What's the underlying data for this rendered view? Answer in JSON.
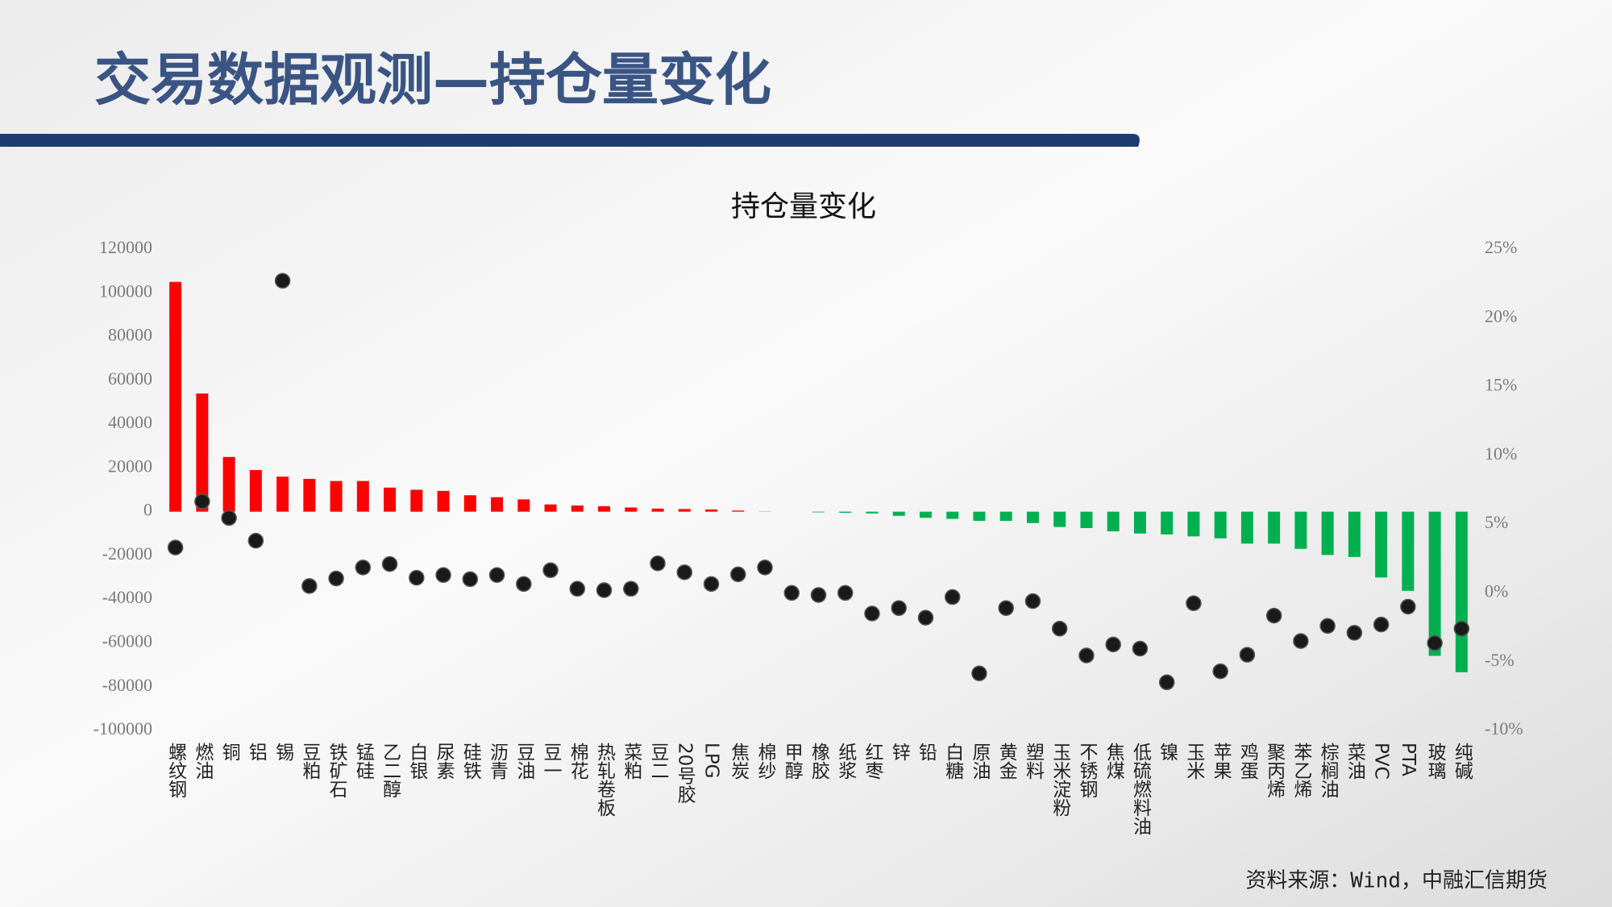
{
  "slide_title": "交易数据观测—持仓量变化",
  "source": "资料来源：Wind，中融汇信期货",
  "chart_data": {
    "type": "combo",
    "title": "持仓量变化",
    "categories": [
      "螺纹钢",
      "燃油",
      "铜",
      "铝",
      "锡",
      "豆粕",
      "铁矿石",
      "锰硅",
      "乙二醇",
      "白银",
      "尿素",
      "硅铁",
      "沥青",
      "豆油",
      "豆一",
      "棉花",
      "热轧卷板",
      "菜粕",
      "豆二",
      "20号胶",
      "LPG",
      "焦炭",
      "棉纱",
      "甲醇",
      "橡胶",
      "纸浆",
      "红枣",
      "锌",
      "铅",
      "白糖",
      "原油",
      "黄金",
      "塑料",
      "玉米淀粉",
      "不锈钢",
      "焦煤",
      "低硫燃料油",
      "镍",
      "玉米",
      "苹果",
      "鸡蛋",
      "聚丙烯",
      "苯乙烯",
      "棕榈油",
      "菜油",
      "PVC",
      "PTA",
      "玻璃",
      "纯碱"
    ],
    "series": [
      {
        "type": "bar",
        "color": "#ff0000",
        "negative_color": "#00b050",
        "values": [
          105000,
          54000,
          25000,
          19000,
          16000,
          15000,
          14000,
          14000,
          11000,
          10000,
          9500,
          7500,
          6600,
          5600,
          3300,
          2800,
          2500,
          1900,
          1400,
          1200,
          1000,
          500,
          100,
          0,
          -300,
          -500,
          -800,
          -1900,
          -2800,
          -3300,
          -4200,
          -4200,
          -5200,
          -7000,
          -7500,
          -9000,
          -10000,
          -10400,
          -11300,
          -12200,
          -14600,
          -14600,
          -17000,
          -19800,
          -20700,
          -30100,
          -36200,
          -65900,
          -73400
        ]
      },
      {
        "type": "scatter",
        "axis": "y2",
        "color": "#1a1a1a",
        "values": [
          3.3,
          6.65,
          5.45,
          3.8,
          22.7,
          0.5,
          1.05,
          1.85,
          2.1,
          1.1,
          1.3,
          1.0,
          1.3,
          0.65,
          1.65,
          0.3,
          0.2,
          0.3,
          2.15,
          1.5,
          0.65,
          1.35,
          1.85,
          0,
          -0.15,
          0,
          -1.5,
          -1.1,
          -1.8,
          -0.3,
          -5.85,
          -1.1,
          -0.6,
          -2.6,
          -4.55,
          -3.75,
          -4.05,
          -6.5,
          -0.75,
          -5.7,
          -4.5,
          -1.65,
          -3.5,
          -2.4,
          -2.9,
          -2.3,
          -1.0,
          -3.65,
          -2.6
        ]
      }
    ],
    "ylim": [
      -100000,
      120000
    ],
    "yticks": [
      -100000,
      -80000,
      -60000,
      -40000,
      -20000,
      0,
      20000,
      40000,
      60000,
      80000,
      100000,
      120000
    ],
    "y2lim": [
      -10,
      25
    ],
    "y2ticks": [
      {
        "value": -10,
        "label": "-10%"
      },
      {
        "value": -5,
        "label": "-5%"
      },
      {
        "value": 0,
        "label": "0%"
      },
      {
        "value": 5,
        "label": "5%"
      },
      {
        "value": 10,
        "label": "10%"
      },
      {
        "value": 15,
        "label": "15%"
      },
      {
        "value": 20,
        "label": "20%"
      },
      {
        "value": 25,
        "label": "25%"
      }
    ],
    "grid": false
  }
}
